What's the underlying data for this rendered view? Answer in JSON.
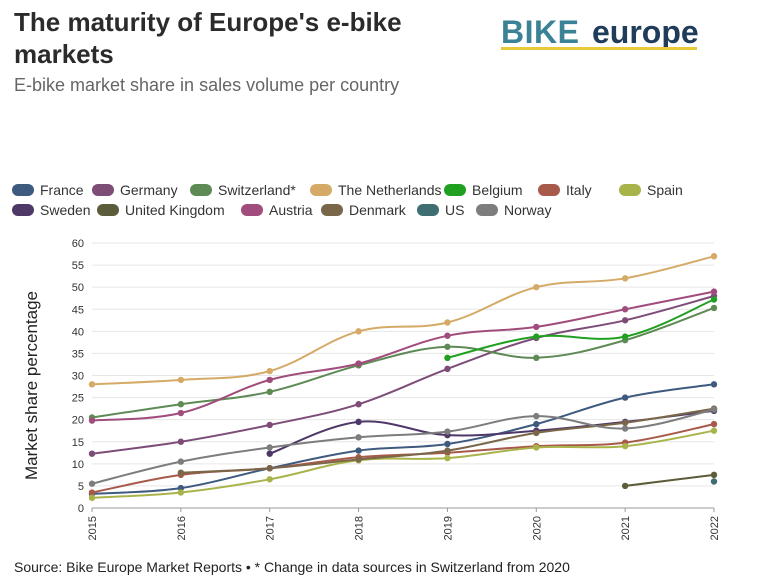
{
  "header": {
    "title": "The maturity of Europe's e-bike markets",
    "subtitle": "E-bike market share in sales volume per country"
  },
  "logo": {
    "text_bike": "BIKE",
    "text_europe": "europe"
  },
  "footer": {
    "source": "Source: Bike Europe Market Reports • * Change in data sources in Switzerland from 2020"
  },
  "chart_data": {
    "type": "line",
    "title": "The maturity of Europe's e-bike markets",
    "subtitle": "E-bike market share in sales volume per country",
    "xlabel": "",
    "ylabel": "Market share percentage",
    "x": [
      "2015",
      "2016",
      "2017",
      "2018",
      "2019",
      "2020",
      "2021",
      "2022"
    ],
    "ylim": [
      0,
      60
    ],
    "yticks": [
      0,
      5,
      10,
      15,
      20,
      25,
      30,
      35,
      40,
      45,
      50,
      55,
      60
    ],
    "grid": true,
    "legend_position": "top",
    "series": [
      {
        "name": "France",
        "color": "#3e5a7e",
        "values": [
          3.2,
          4.5,
          9.0,
          13.0,
          14.5,
          19.0,
          25.0,
          28.0
        ]
      },
      {
        "name": "Germany",
        "color": "#7d4d78",
        "values": [
          12.3,
          15.0,
          18.8,
          23.5,
          31.5,
          38.5,
          42.5,
          48.0
        ]
      },
      {
        "name": "Switzerland*",
        "color": "#5e8a55",
        "values": [
          20.5,
          23.5,
          26.3,
          32.3,
          36.5,
          34.0,
          38.0,
          45.3
        ]
      },
      {
        "name": "The Netherlands",
        "color": "#d4aa66",
        "values": [
          28.0,
          29.0,
          31.0,
          40.0,
          42.0,
          50.0,
          52.0,
          57.0
        ]
      },
      {
        "name": "Belgium",
        "color": "#20a020",
        "values": [
          null,
          null,
          null,
          null,
          34.0,
          38.8,
          38.8,
          47.2
        ]
      },
      {
        "name": "Italy",
        "color": "#a85a4a",
        "values": [
          3.5,
          7.5,
          9.0,
          11.5,
          12.5,
          14.0,
          14.8,
          19.0
        ]
      },
      {
        "name": "Spain",
        "color": "#a8b44a",
        "values": [
          2.3,
          3.5,
          6.5,
          10.8,
          11.3,
          13.7,
          14.0,
          17.5
        ]
      },
      {
        "name": "Sweden",
        "color": "#4e3868",
        "values": [
          null,
          null,
          12.3,
          19.5,
          16.5,
          17.5,
          19.5,
          22.0
        ]
      },
      {
        "name": "United Kingdom",
        "color": "#5c5c3a",
        "values": [
          null,
          null,
          null,
          null,
          null,
          null,
          5.0,
          7.5
        ]
      },
      {
        "name": "Austria",
        "color": "#a04c7c",
        "values": [
          19.8,
          21.5,
          29.0,
          32.7,
          39.0,
          41.0,
          45.0,
          49.0
        ]
      },
      {
        "name": "Denmark",
        "color": "#7a6648",
        "values": [
          null,
          8.0,
          9.0,
          11.0,
          13.0,
          17.0,
          19.3,
          22.5
        ]
      },
      {
        "name": "US",
        "color": "#3e6e72",
        "values": [
          null,
          null,
          null,
          null,
          null,
          null,
          null,
          6.0
        ]
      },
      {
        "name": "Norway",
        "color": "#7d7d7d",
        "values": [
          5.5,
          10.5,
          13.7,
          16.0,
          17.3,
          20.8,
          18.0,
          22.3
        ]
      }
    ]
  }
}
